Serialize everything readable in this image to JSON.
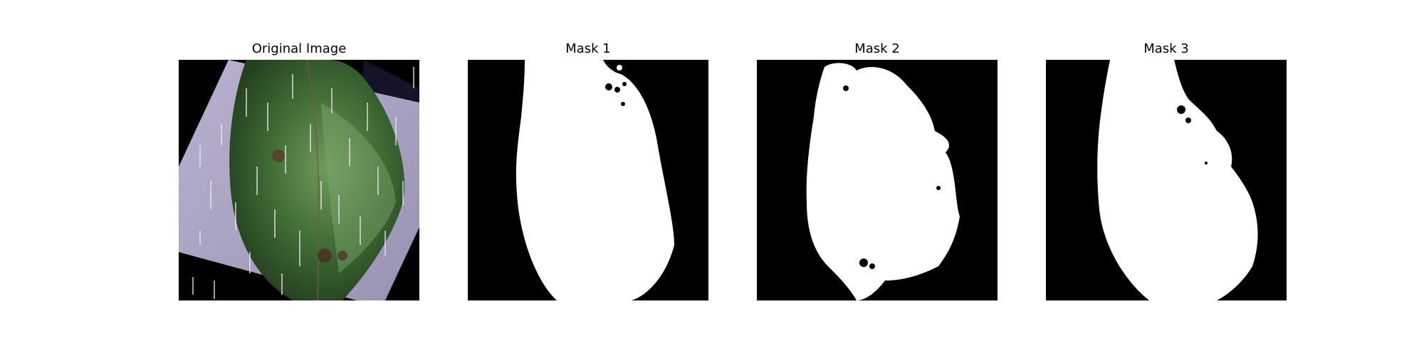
{
  "panels": [
    {
      "title": "Original Image"
    },
    {
      "title": "Mask 1"
    },
    {
      "title": "Mask 2"
    },
    {
      "title": "Mask 3"
    }
  ],
  "colors": {
    "background": "#000000",
    "mask_foreground": "#ffffff",
    "leaf_green": "#3f6b34",
    "sheet_lavender": "#a79fbd"
  }
}
